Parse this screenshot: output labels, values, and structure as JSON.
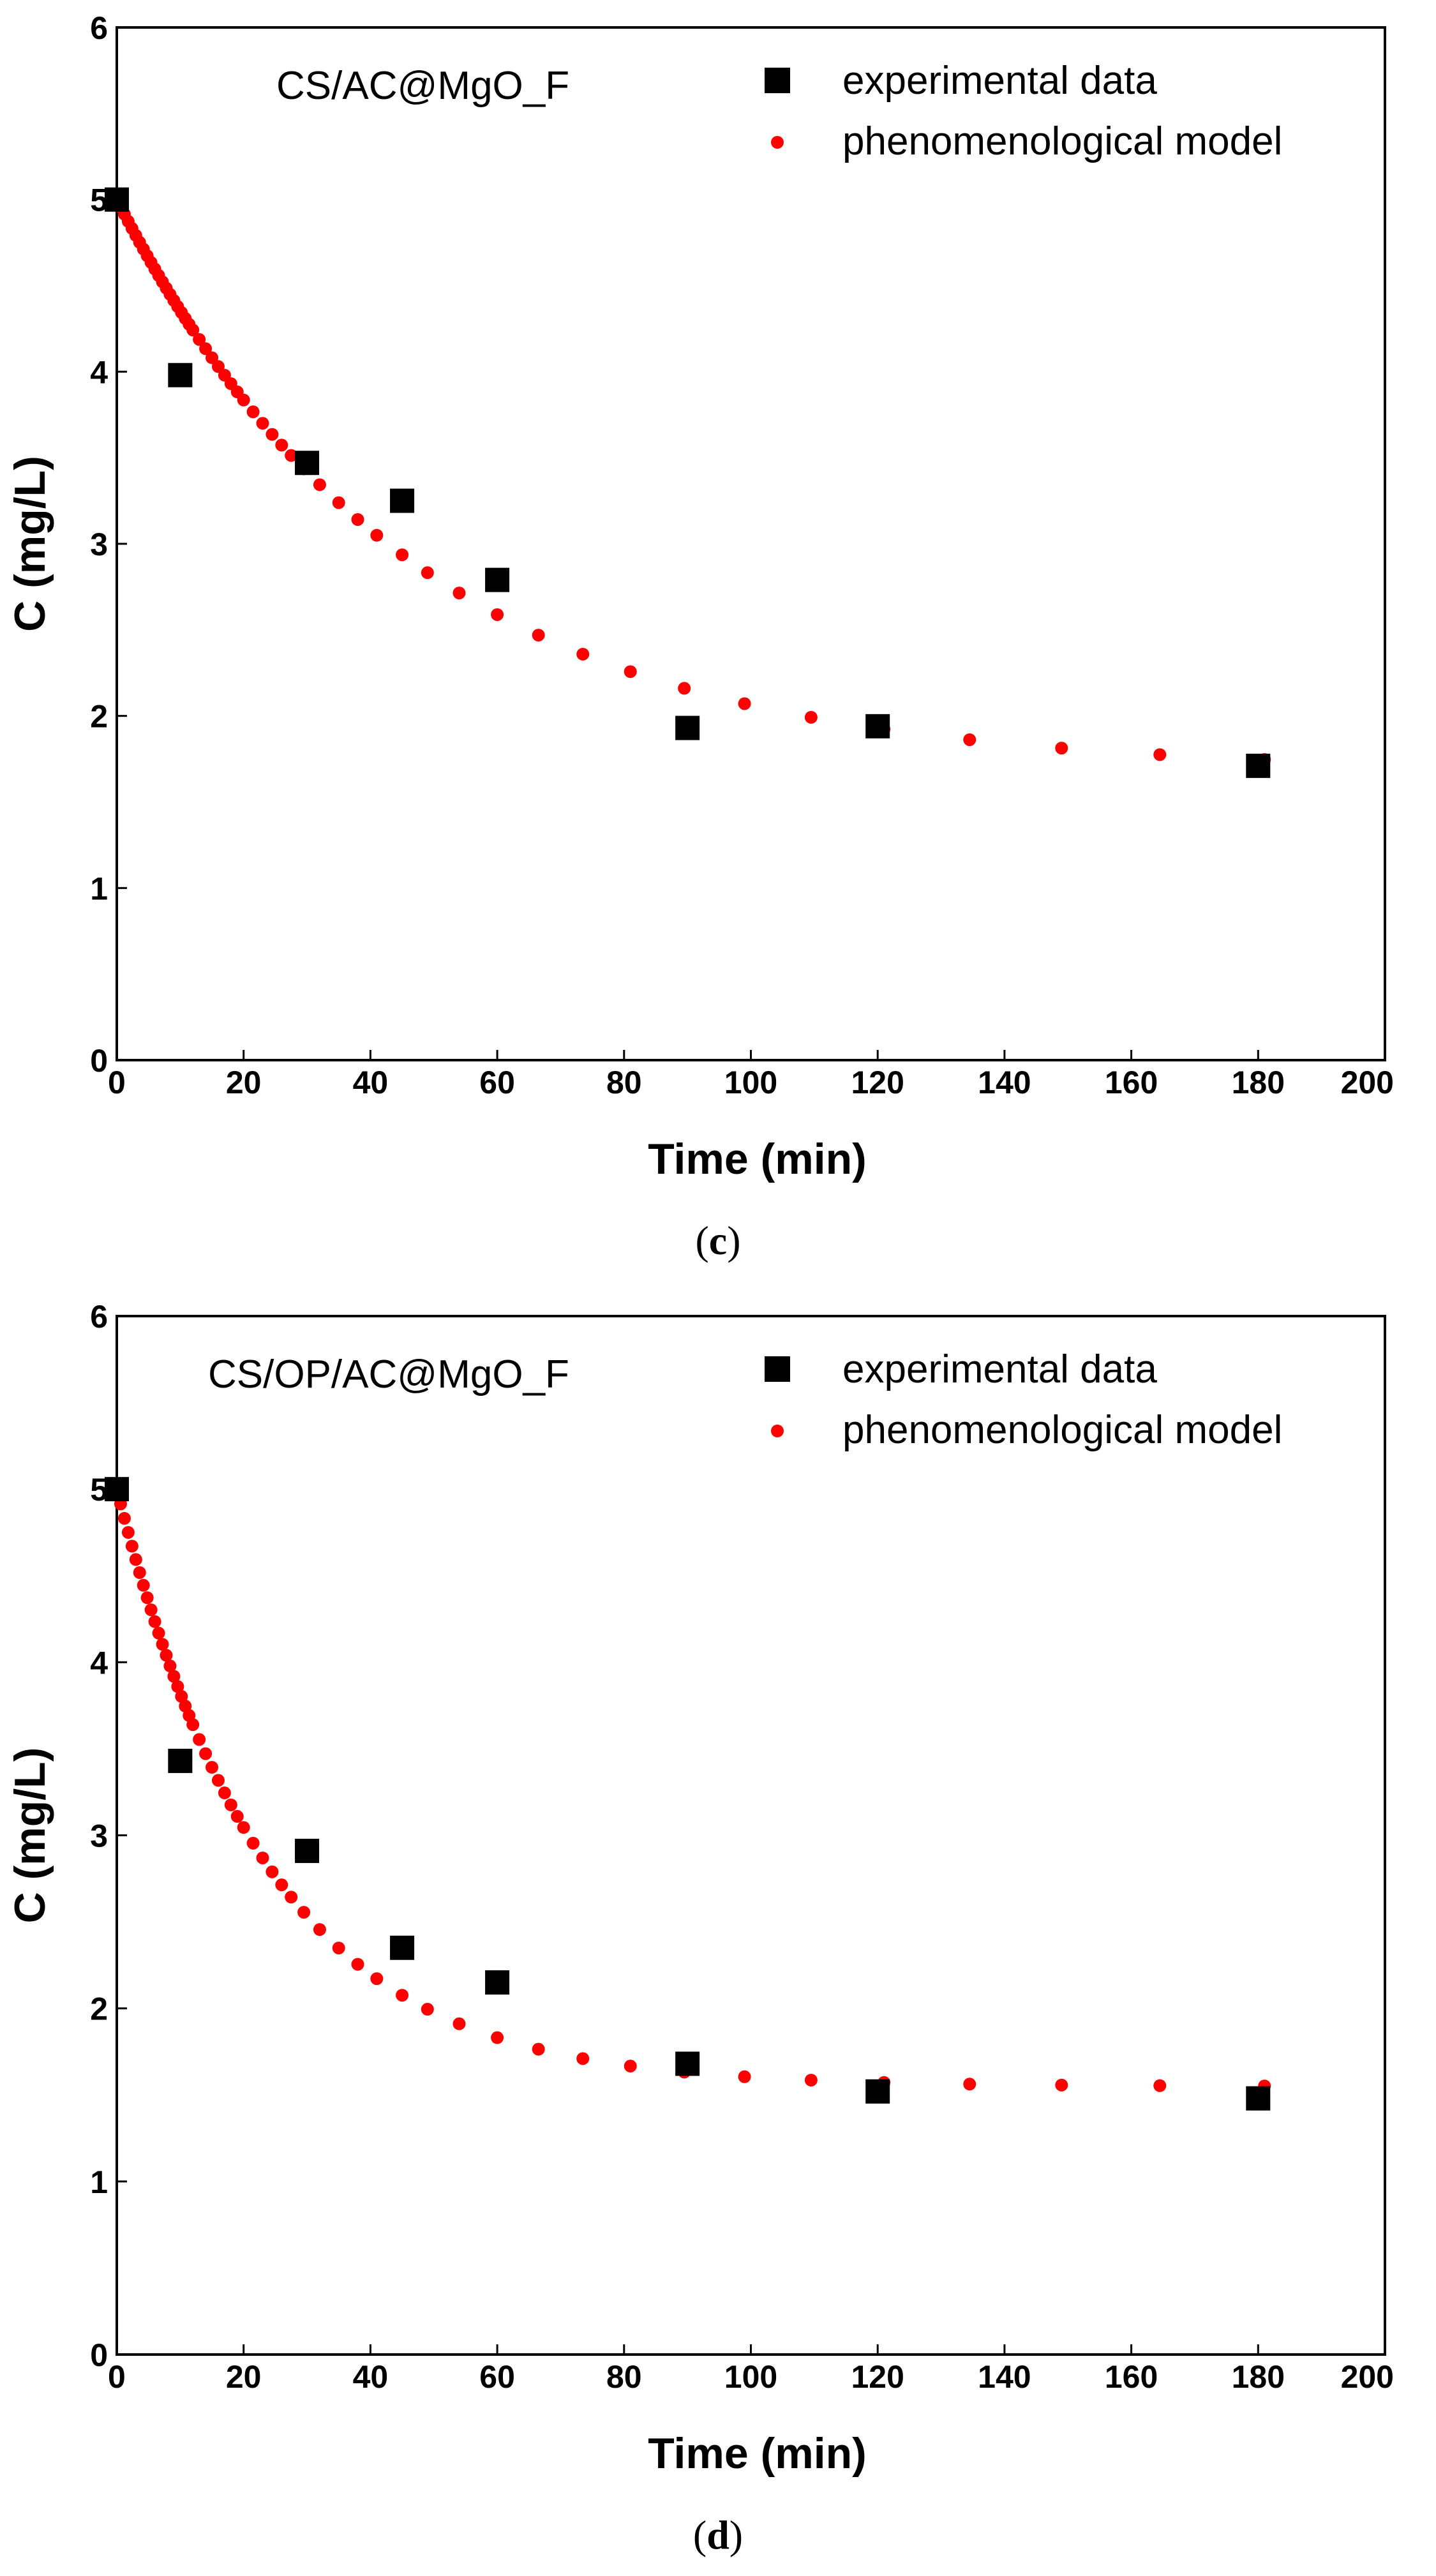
{
  "chart_data": [
    {
      "type": "scatter",
      "panel_label": "c",
      "title": "CS/AC@MgO_F",
      "xlabel": "Time (min)",
      "ylabel": "C (mg/L)",
      "xlim": [
        0,
        200
      ],
      "ylim": [
        0,
        6
      ],
      "xticks": [
        0,
        20,
        40,
        60,
        80,
        100,
        120,
        140,
        160,
        180,
        200
      ],
      "yticks": [
        0,
        1,
        2,
        3,
        4,
        5,
        6
      ],
      "legend_position": "top-right",
      "series": [
        {
          "name": "experimental data",
          "marker": "square",
          "color": "#000000",
          "x": [
            0,
            10,
            30,
            45,
            60,
            90,
            120,
            180
          ],
          "y": [
            5.0,
            3.98,
            3.47,
            3.25,
            2.79,
            1.93,
            1.94,
            1.71
          ]
        },
        {
          "name": "phenomenological model",
          "marker": "circle",
          "color": "#ff0000",
          "model": {
            "c0": 5.0,
            "c_inf": 1.68,
            "k": 0.0216
          },
          "x": [
            0,
            0.6,
            1.2,
            1.8,
            2.4,
            3.0,
            3.6,
            4.2,
            4.8,
            5.4,
            6.0,
            6.6,
            7.2,
            7.8,
            8.4,
            9.0,
            9.6,
            10.2,
            10.8,
            11.4,
            12.0,
            13.0,
            14.0,
            15.0,
            16.0,
            17.0,
            18.0,
            19.0,
            20.0,
            21.5,
            23.0,
            24.5,
            26.0,
            27.5,
            29.5,
            32.0,
            35.0,
            38.0,
            41.0,
            45.0,
            49.0,
            54.0,
            60.0,
            66.5,
            73.5,
            81.0,
            89.5,
            99.0,
            109.5,
            121.0,
            134.5,
            149.0,
            164.5,
            181.0
          ]
        }
      ]
    },
    {
      "type": "scatter",
      "panel_label": "d",
      "title": "CS/OP/AC@MgO_F",
      "xlabel": "Time (min)",
      "ylabel": "C (mg/L)",
      "xlim": [
        0,
        200
      ],
      "ylim": [
        0,
        6
      ],
      "xticks": [
        0,
        20,
        40,
        60,
        80,
        100,
        120,
        140,
        160,
        180,
        200
      ],
      "yticks": [
        0,
        1,
        2,
        3,
        4,
        5,
        6
      ],
      "legend_position": "top-right",
      "series": [
        {
          "name": "experimental data",
          "marker": "square",
          "color": "#000000",
          "x": [
            0,
            10,
            30,
            45,
            60,
            90,
            120,
            180
          ],
          "y": [
            5.0,
            3.43,
            2.91,
            2.35,
            2.15,
            1.68,
            1.52,
            1.48
          ]
        },
        {
          "name": "phenomenological model",
          "marker": "circle",
          "color": "#ff0000",
          "model": {
            "c0": 5.0,
            "c_inf": 1.55,
            "k": 0.0418
          },
          "x": [
            0,
            0.6,
            1.2,
            1.8,
            2.4,
            3.0,
            3.6,
            4.2,
            4.8,
            5.4,
            6.0,
            6.6,
            7.2,
            7.8,
            8.4,
            9.0,
            9.6,
            10.2,
            10.8,
            11.4,
            12.0,
            13.0,
            14.0,
            15.0,
            16.0,
            17.0,
            18.0,
            19.0,
            20.0,
            21.5,
            23.0,
            24.5,
            26.0,
            27.5,
            29.5,
            32.0,
            35.0,
            38.0,
            41.0,
            45.0,
            49.0,
            54.0,
            60.0,
            66.5,
            73.5,
            81.0,
            89.5,
            99.0,
            109.5,
            121.0,
            134.5,
            149.0,
            164.5,
            181.0
          ]
        }
      ]
    }
  ]
}
